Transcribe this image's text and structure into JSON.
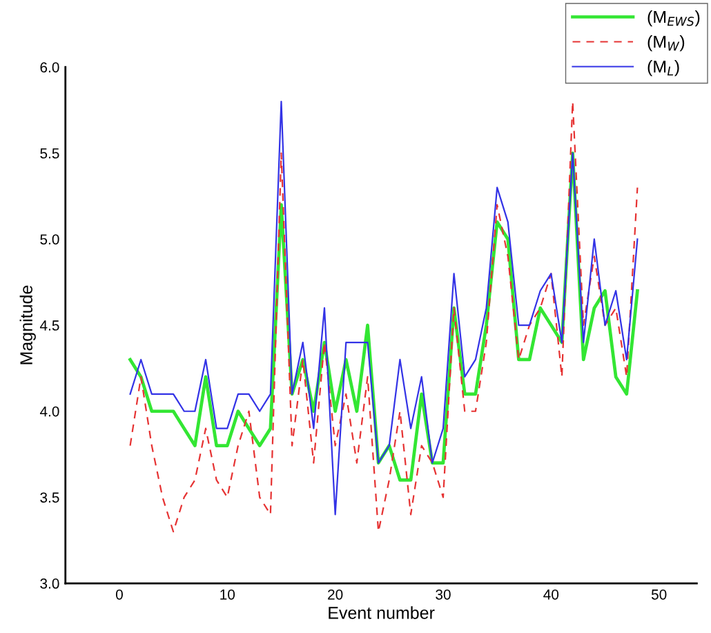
{
  "chart_data": {
    "type": "line",
    "xlabel": "Event number",
    "ylabel": "Magnitude",
    "x": [
      1,
      2,
      3,
      4,
      5,
      6,
      7,
      8,
      9,
      10,
      11,
      12,
      13,
      14,
      15,
      16,
      17,
      18,
      19,
      20,
      21,
      22,
      23,
      24,
      25,
      26,
      27,
      28,
      29,
      30,
      31,
      32,
      33,
      34,
      35,
      36,
      37,
      38,
      39,
      40,
      41,
      42,
      43,
      44,
      45,
      46,
      47,
      48
    ],
    "series": [
      {
        "name": "(M$_{EWS}$)",
        "color": "#33e633",
        "line_style": "solid",
        "values": [
          4.3,
          4.2,
          4.0,
          4.0,
          4.0,
          3.9,
          3.8,
          4.2,
          3.8,
          3.8,
          4.0,
          3.9,
          3.8,
          3.9,
          5.2,
          4.1,
          4.3,
          4.0,
          4.4,
          4.0,
          4.3,
          4.0,
          4.5,
          3.7,
          3.8,
          3.6,
          3.6,
          4.1,
          3.7,
          3.7,
          4.6,
          4.1,
          4.1,
          4.5,
          5.1,
          5.0,
          4.3,
          4.3,
          4.6,
          4.5,
          4.4,
          5.5,
          4.3,
          4.6,
          4.7,
          4.2,
          4.1,
          4.7
        ]
      },
      {
        "name": "(M$_{W}$)",
        "color": "#e63333",
        "line_style": "dashed",
        "values": [
          3.8,
          4.2,
          3.8,
          3.5,
          3.3,
          3.5,
          3.6,
          3.9,
          3.6,
          3.5,
          3.8,
          4.0,
          3.5,
          3.4,
          5.5,
          3.8,
          4.3,
          3.7,
          4.4,
          3.8,
          4.1,
          3.7,
          4.2,
          3.3,
          3.6,
          4.0,
          3.4,
          3.8,
          3.7,
          3.5,
          4.6,
          4.0,
          4.0,
          4.4,
          5.2,
          4.9,
          4.3,
          4.5,
          4.6,
          4.8,
          4.2,
          5.8,
          4.5,
          4.9,
          4.5,
          4.6,
          4.2,
          5.3
        ]
      },
      {
        "name": "(M$_{L}$)",
        "color": "#3333e6",
        "line_style": "solid",
        "values": [
          4.1,
          4.3,
          4.1,
          4.1,
          4.1,
          4.0,
          4.0,
          4.3,
          3.9,
          3.9,
          4.1,
          4.1,
          4.0,
          4.1,
          5.8,
          4.1,
          4.4,
          3.9,
          4.6,
          3.4,
          4.4,
          4.4,
          4.4,
          3.7,
          3.8,
          4.3,
          3.9,
          4.2,
          3.7,
          3.9,
          4.8,
          4.2,
          4.3,
          4.6,
          5.3,
          5.1,
          4.5,
          4.5,
          4.7,
          4.8,
          4.4,
          5.5,
          4.4,
          5.0,
          4.5,
          4.7,
          4.3,
          5.0
        ]
      }
    ],
    "xlim": [
      -5,
      53.5
    ],
    "xticks": [
      0,
      10,
      20,
      30,
      40,
      50
    ],
    "ylim": [
      3,
      6
    ],
    "yticks": [
      {
        "value": 3,
        "label": "3.0"
      },
      {
        "value": 3.5,
        "label": "3.5"
      },
      {
        "value": 4,
        "label": "4.0"
      },
      {
        "value": 4.5,
        "label": "4.5"
      },
      {
        "value": 5,
        "label": "5.0"
      },
      {
        "value": 5.5,
        "label": "5.5"
      },
      {
        "value": 6,
        "label": "6.0"
      }
    ],
    "legend": "top right",
    "grid": false,
    "marker": "none"
  }
}
